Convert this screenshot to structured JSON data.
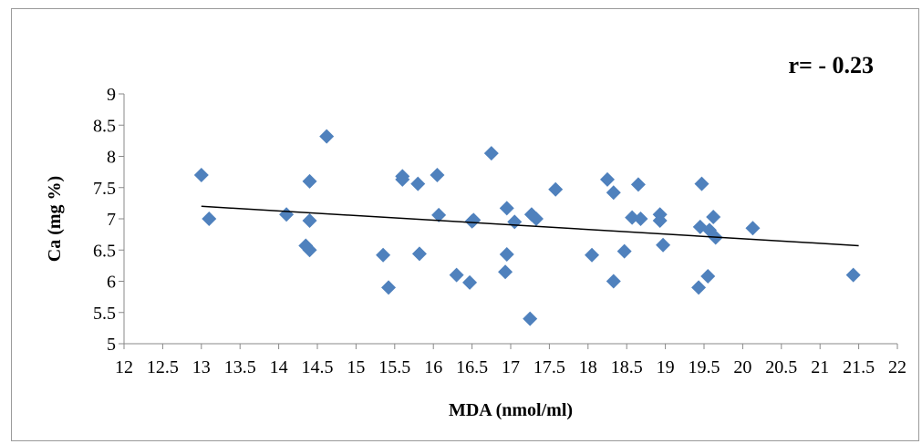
{
  "chart_data": {
    "type": "scatter",
    "xlabel": "MDA (nmol/ml)",
    "ylabel": "Ca (mg %)",
    "annotation": "r= - 0.23",
    "xlim": [
      12,
      22
    ],
    "ylim": [
      5,
      9
    ],
    "x_ticks": [
      "12",
      "12.5",
      "13",
      "13.5",
      "14",
      "14.5",
      "15",
      "15.5",
      "16",
      "16.5",
      "17",
      "17.5",
      "18",
      "18.5",
      "19",
      "19.5",
      "20",
      "20.5",
      "21",
      "21.5",
      "22"
    ],
    "y_ticks": [
      "5",
      "5.5",
      "6",
      "6.5",
      "7",
      "7.5",
      "8",
      "8.5",
      "9"
    ],
    "grid": false,
    "legend": "none",
    "marker": "diamond",
    "marker_color": "#4F81BD",
    "trendline": {
      "type": "linear",
      "color": "#000000",
      "x": [
        13,
        21.5
      ],
      "y": [
        7.2,
        6.57
      ]
    },
    "points": [
      {
        "x": 13.0,
        "y": 7.7
      },
      {
        "x": 13.1,
        "y": 7.0
      },
      {
        "x": 14.1,
        "y": 7.07
      },
      {
        "x": 14.4,
        "y": 7.6
      },
      {
        "x": 14.4,
        "y": 6.97
      },
      {
        "x": 14.35,
        "y": 6.57
      },
      {
        "x": 14.4,
        "y": 6.5
      },
      {
        "x": 14.62,
        "y": 8.32
      },
      {
        "x": 15.35,
        "y": 6.42
      },
      {
        "x": 15.42,
        "y": 5.9
      },
      {
        "x": 15.6,
        "y": 7.68
      },
      {
        "x": 15.6,
        "y": 7.63
      },
      {
        "x": 15.8,
        "y": 7.56
      },
      {
        "x": 15.82,
        "y": 6.44
      },
      {
        "x": 16.05,
        "y": 7.7
      },
      {
        "x": 16.07,
        "y": 7.06
      },
      {
        "x": 16.3,
        "y": 6.1
      },
      {
        "x": 16.47,
        "y": 5.98
      },
      {
        "x": 16.5,
        "y": 6.96
      },
      {
        "x": 16.52,
        "y": 6.98
      },
      {
        "x": 16.75,
        "y": 8.05
      },
      {
        "x": 16.95,
        "y": 7.17
      },
      {
        "x": 16.95,
        "y": 6.43
      },
      {
        "x": 16.93,
        "y": 6.15
      },
      {
        "x": 17.05,
        "y": 6.95
      },
      {
        "x": 17.27,
        "y": 7.07
      },
      {
        "x": 17.33,
        "y": 7.0
      },
      {
        "x": 17.25,
        "y": 5.4
      },
      {
        "x": 17.58,
        "y": 7.47
      },
      {
        "x": 18.05,
        "y": 6.42
      },
      {
        "x": 18.25,
        "y": 7.63
      },
      {
        "x": 18.33,
        "y": 7.42
      },
      {
        "x": 18.33,
        "y": 6.0
      },
      {
        "x": 18.47,
        "y": 6.48
      },
      {
        "x": 18.57,
        "y": 7.02
      },
      {
        "x": 18.65,
        "y": 7.55
      },
      {
        "x": 18.68,
        "y": 7.0
      },
      {
        "x": 18.93,
        "y": 7.07
      },
      {
        "x": 18.93,
        "y": 6.97
      },
      {
        "x": 18.97,
        "y": 6.58
      },
      {
        "x": 19.43,
        "y": 5.9
      },
      {
        "x": 19.47,
        "y": 7.56
      },
      {
        "x": 19.45,
        "y": 6.87
      },
      {
        "x": 19.57,
        "y": 6.82
      },
      {
        "x": 19.55,
        "y": 6.08
      },
      {
        "x": 19.62,
        "y": 7.03
      },
      {
        "x": 19.65,
        "y": 6.7
      },
      {
        "x": 20.13,
        "y": 6.85
      },
      {
        "x": 21.43,
        "y": 6.1
      }
    ]
  }
}
